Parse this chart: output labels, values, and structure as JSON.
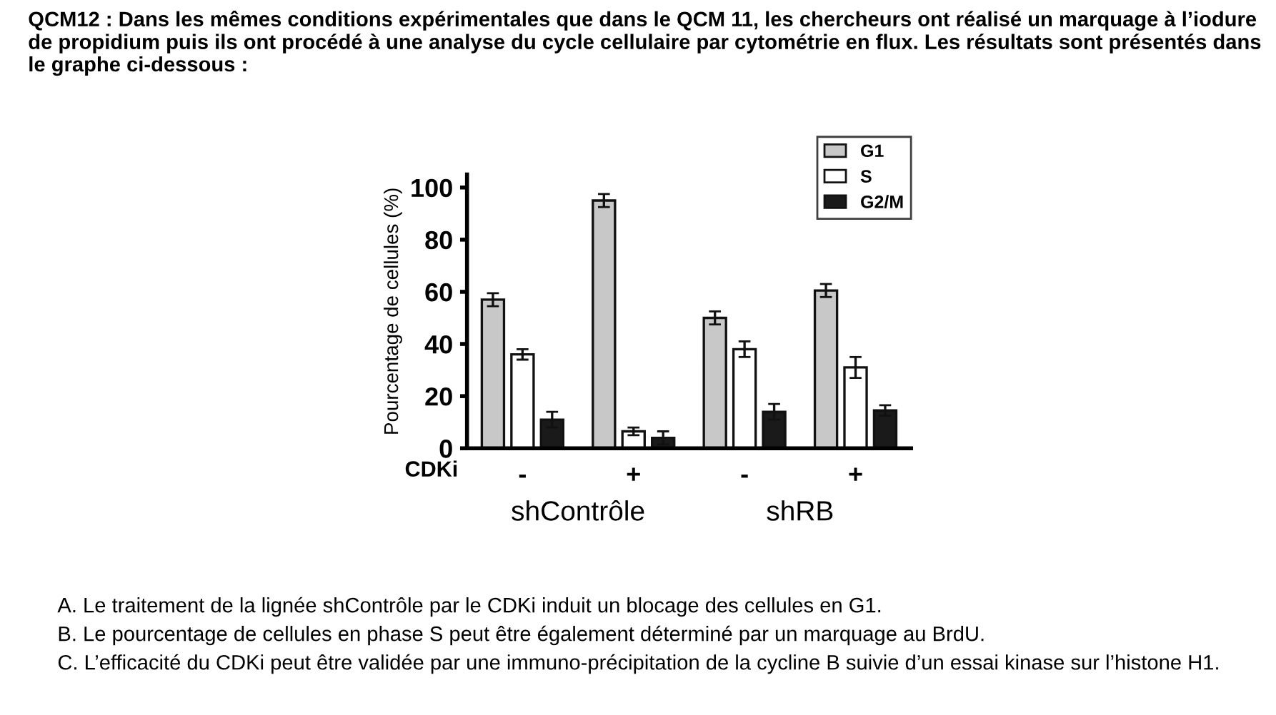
{
  "chart_data": {
    "type": "bar",
    "title": "QCM12 : Dans les mêmes conditions expérimentales que dans le QCM 11, les chercheurs ont réalisé un marquage à l’iodure de propidium puis ils ont procédé à une analyse du cycle cellulaire par cytométrie en flux. Les résultats sont présentés dans le graphe ci-dessous :",
    "ylabel": "Pourcentage de cellules (%)",
    "xlabel": "CDKi",
    "categories": [
      "-",
      "+",
      "-",
      "+"
    ],
    "series": [
      {
        "name": "G1",
        "color": "#c8c8c8",
        "values": [
          57,
          95,
          50,
          60.5
        ],
        "errors": [
          2.5,
          2.5,
          2.5,
          2.5
        ]
      },
      {
        "name": "S",
        "color": "#ffffff",
        "values": [
          36,
          6.5,
          38,
          31
        ],
        "errors": [
          2,
          1.5,
          3,
          4
        ]
      },
      {
        "name": "G2/M",
        "color": "#1a1a1a",
        "values": [
          11,
          4,
          14,
          14.5
        ],
        "errors": [
          3,
          2.5,
          3,
          2
        ]
      }
    ],
    "ylim": [
      0,
      105
    ],
    "yticks": [
      0,
      20,
      40,
      60,
      80,
      100
    ],
    "grid": false,
    "legend": "top right",
    "annotations": [
      "shContrôle",
      "shRB",
      "A. Le traitement de la lignée shContrôle par le CDKi induit un blocage des cellules en G1.",
      "B. Le pourcentage de cellules en phase S peut être également déterminé par un marquage au BrdU.",
      "C. L’efficacité du CDKi peut être validée par une immuno-précipitation de la cycline B suivie d’un essai kinase sur l’histone H1."
    ]
  }
}
